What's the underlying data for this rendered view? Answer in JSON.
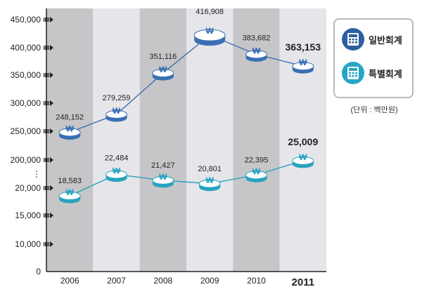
{
  "chart_data": {
    "type": "line",
    "categories": [
      "2006",
      "2007",
      "2008",
      "2009",
      "2010",
      "2011"
    ],
    "emphasized_category": "2011",
    "y_tick_labels": [
      "0",
      "10,000",
      "15,000",
      "20,000",
      "⋮",
      "200,000",
      "250,000",
      "300,000",
      "350,000",
      "400,000",
      "450,000"
    ],
    "axis_break_between": [
      "20,000",
      "200,000"
    ],
    "series": [
      {
        "name": "일반회계",
        "color": "#3a6fb3",
        "values": [
          248152,
          279259,
          351116,
          416908,
          383682,
          363153
        ],
        "labels": [
          "248,152",
          "279,259",
          "351,116",
          "416,908",
          "383,682",
          "363,153"
        ]
      },
      {
        "name": "특별회계",
        "color": "#2aa3bf",
        "values": [
          18583,
          22484,
          21427,
          20801,
          22395,
          25009
        ],
        "labels": [
          "18,583",
          "22,484",
          "21,427",
          "20,801",
          "22,395",
          "25,009"
        ]
      }
    ],
    "marker_symbol": "₩",
    "unit_note": "(단위 : 백만원)",
    "legend_placement": "top-right",
    "background_bands": true,
    "grid": false
  },
  "colors": {
    "band_dark": "#c6c6c8",
    "band_light": "#e6e6ea",
    "axis": "#222222"
  }
}
